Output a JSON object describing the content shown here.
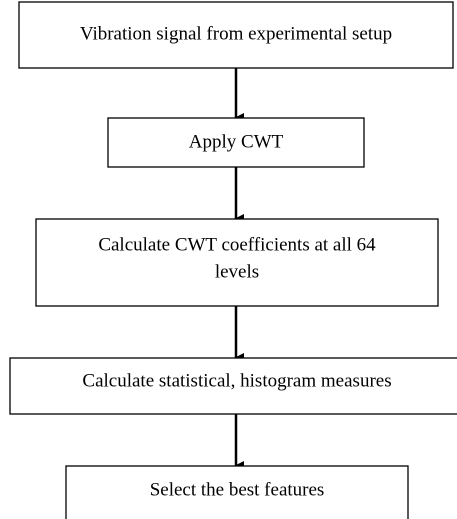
{
  "nodes": [
    {
      "label": "Vibration signal from experimental setup"
    },
    {
      "label": "Apply CWT"
    },
    {
      "label": "Calculate CWT coefficients at all 64",
      "label2": "levels"
    },
    {
      "label": "Calculate statistical, histogram measures"
    },
    {
      "label": "Select the best features"
    }
  ]
}
